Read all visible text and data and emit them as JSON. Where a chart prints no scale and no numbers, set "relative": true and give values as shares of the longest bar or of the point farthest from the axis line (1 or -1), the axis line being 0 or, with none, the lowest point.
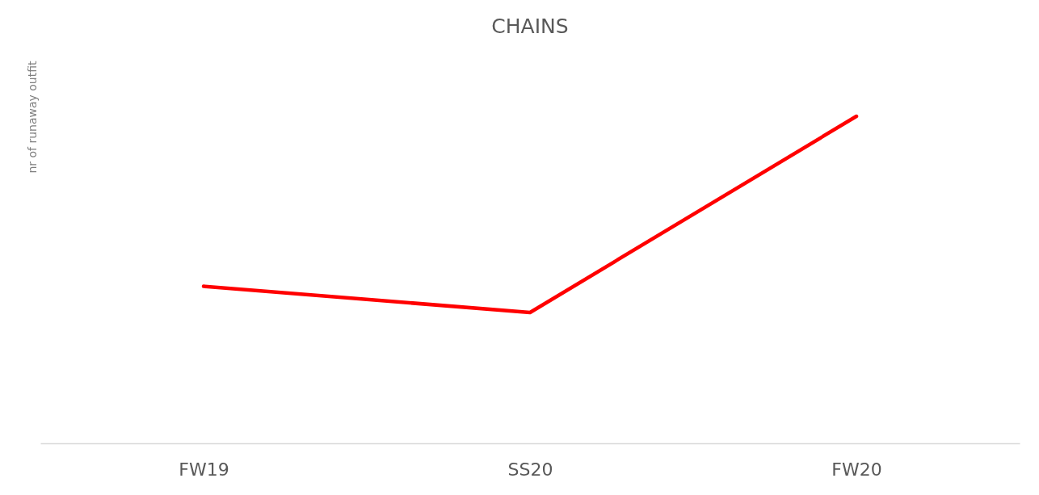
{
  "chart_data": {
    "type": "line",
    "title": "CHAINS",
    "ylabel": "nr of runaway outfit",
    "categories": [
      "FW19",
      "SS20",
      "FW20"
    ],
    "series": [
      {
        "color": "#ff0000",
        "values": [
          0.48,
          0.4,
          1
        ]
      }
    ],
    "relative": true,
    "line_style": "solid"
  }
}
